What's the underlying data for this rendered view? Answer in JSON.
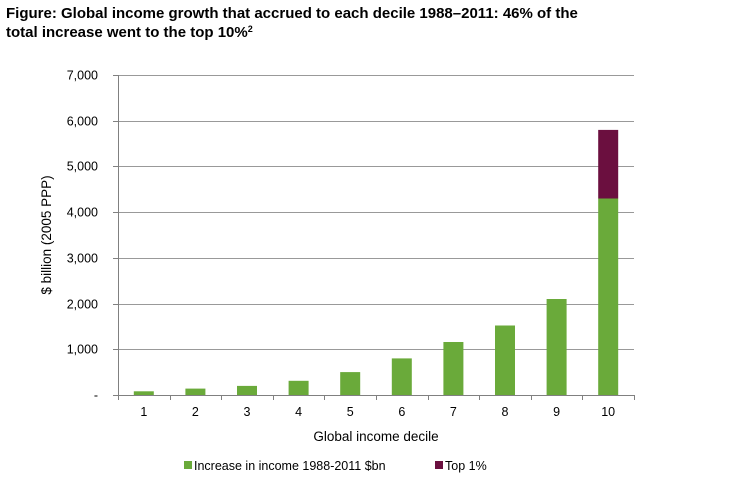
{
  "title": {
    "line1": "Figure: Global income growth that accrued to each decile 1988–2011: 46% of the",
    "line2": "total increase went to the top 10%",
    "footnote": "2"
  },
  "colors": {
    "increase": "#6aaa3a",
    "top1": "#6b0f3f",
    "grid": "#999999",
    "axis": "#808080"
  },
  "chart_data": {
    "type": "bar",
    "stacked": true,
    "categories": [
      "1",
      "2",
      "3",
      "4",
      "5",
      "6",
      "7",
      "8",
      "9",
      "10"
    ],
    "series": [
      {
        "name": "Increase in income 1988-2011 $bn",
        "values": [
          80,
          140,
          200,
          310,
          500,
          800,
          1160,
          1520,
          2100,
          4300
        ]
      },
      {
        "name": "Top 1%",
        "values": [
          0,
          0,
          0,
          0,
          0,
          0,
          0,
          0,
          0,
          1500
        ]
      }
    ],
    "xlabel": "Global income decile",
    "ylabel": "$ billion (2005 PPP)",
    "ylim": [
      0,
      7000
    ],
    "yticks": [
      0,
      1000,
      2000,
      3000,
      4000,
      5000,
      6000,
      7000
    ],
    "ytick_labels": [
      "-",
      "1,000",
      "2,000",
      "3,000",
      "4,000",
      "5,000",
      "6,000",
      "7,000"
    ],
    "grid": true,
    "legend": "bottom"
  }
}
